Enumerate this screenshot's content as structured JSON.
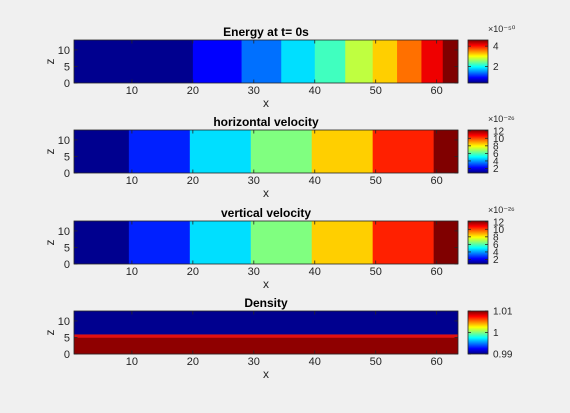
{
  "chart_data": [
    {
      "type": "heatmap",
      "title": "Energy at t= 0s",
      "xlabel": "x",
      "ylabel": "z",
      "xlim": [
        0.5,
        63.5
      ],
      "ylim": [
        0,
        13
      ],
      "xticks": [
        10,
        20,
        30,
        40,
        50,
        60
      ],
      "yticks": [
        0,
        5,
        10
      ],
      "field": "vertical_bands",
      "bands": [
        {
          "x0": 0.5,
          "x1": 20,
          "color": "#00008f"
        },
        {
          "x0": 20,
          "x1": 28,
          "color": "#0000ff"
        },
        {
          "x0": 28,
          "x1": 34.5,
          "color": "#0070ff"
        },
        {
          "x0": 34.5,
          "x1": 40,
          "color": "#00dfff"
        },
        {
          "x0": 40,
          "x1": 45,
          "color": "#40ffbf"
        },
        {
          "x0": 45,
          "x1": 49.5,
          "color": "#bfff40"
        },
        {
          "x0": 49.5,
          "x1": 53.5,
          "color": "#ffcf00"
        },
        {
          "x0": 53.5,
          "x1": 57.5,
          "color": "#ff7000"
        },
        {
          "x0": 57.5,
          "x1": 61,
          "color": "#ef0000"
        },
        {
          "x0": 61,
          "x1": 63.5,
          "color": "#800000"
        }
      ],
      "colorbar": {
        "clim": [
          0.4,
          4.6
        ],
        "ticks": [
          2,
          4
        ],
        "labels": [
          "2",
          "4"
        ],
        "exponent": "×10⁻⁵⁰"
      }
    },
    {
      "type": "heatmap",
      "title": "horizontal velocity",
      "xlabel": "x",
      "ylabel": "z",
      "xlim": [
        0.5,
        63.5
      ],
      "ylim": [
        0,
        13
      ],
      "xticks": [
        10,
        20,
        30,
        40,
        50,
        60
      ],
      "yticks": [
        0,
        5,
        10
      ],
      "field": "vertical_bands",
      "bands": [
        {
          "x0": 0.5,
          "x1": 9.5,
          "color": "#00008f"
        },
        {
          "x0": 9.5,
          "x1": 19.5,
          "color": "#0020ff"
        },
        {
          "x0": 19.5,
          "x1": 29.5,
          "color": "#00dfff"
        },
        {
          "x0": 29.5,
          "x1": 39.5,
          "color": "#80ff80"
        },
        {
          "x0": 39.5,
          "x1": 49.5,
          "color": "#ffcf00"
        },
        {
          "x0": 49.5,
          "x1": 59.5,
          "color": "#ff2000"
        },
        {
          "x0": 59.5,
          "x1": 63.5,
          "color": "#800000"
        }
      ],
      "colorbar": {
        "clim": [
          0.8,
          12.2
        ],
        "ticks": [
          2,
          4,
          6,
          8,
          10,
          12
        ],
        "labels": [
          "2",
          "4",
          "6",
          "8",
          "10",
          "12"
        ],
        "exponent": "×10⁻²⁶"
      }
    },
    {
      "type": "heatmap",
      "title": "vertical velocity",
      "xlabel": "x",
      "ylabel": "z",
      "xlim": [
        0.5,
        63.5
      ],
      "ylim": [
        0,
        13
      ],
      "xticks": [
        10,
        20,
        30,
        40,
        50,
        60
      ],
      "yticks": [
        0,
        5,
        10
      ],
      "field": "vertical_bands",
      "bands": [
        {
          "x0": 0.5,
          "x1": 9.5,
          "color": "#00008f"
        },
        {
          "x0": 9.5,
          "x1": 19.5,
          "color": "#0020ff"
        },
        {
          "x0": 19.5,
          "x1": 29.5,
          "color": "#00dfff"
        },
        {
          "x0": 29.5,
          "x1": 39.5,
          "color": "#80ff80"
        },
        {
          "x0": 39.5,
          "x1": 49.5,
          "color": "#ffcf00"
        },
        {
          "x0": 49.5,
          "x1": 59.5,
          "color": "#ff2000"
        },
        {
          "x0": 59.5,
          "x1": 63.5,
          "color": "#800000"
        }
      ],
      "colorbar": {
        "clim": [
          0.8,
          12.2
        ],
        "ticks": [
          2,
          4,
          6,
          8,
          10,
          12
        ],
        "labels": [
          "2",
          "4",
          "6",
          "8",
          "10",
          "12"
        ],
        "exponent": "×10⁻²⁶"
      }
    },
    {
      "type": "heatmap",
      "title": "Density",
      "xlabel": "x",
      "ylabel": "z",
      "xlim": [
        0.5,
        63.5
      ],
      "ylim": [
        0,
        13
      ],
      "xticks": [
        10,
        20,
        30,
        40,
        50,
        60
      ],
      "yticks": [
        0,
        5,
        10
      ],
      "field": "horizontal_bands",
      "bands": [
        {
          "z0": 0,
          "z1": 5,
          "color": "#8f0000"
        },
        {
          "z0": 5,
          "z1": 6,
          "color": "#e01010"
        },
        {
          "z0": 6,
          "z1": 13,
          "color": "#00008f"
        }
      ],
      "colorbar": {
        "clim": [
          0.99,
          1.01
        ],
        "ticks": [
          0.99,
          1,
          1.01
        ],
        "labels": [
          "0.99",
          "1",
          "1.01"
        ],
        "exponent": ""
      }
    }
  ]
}
